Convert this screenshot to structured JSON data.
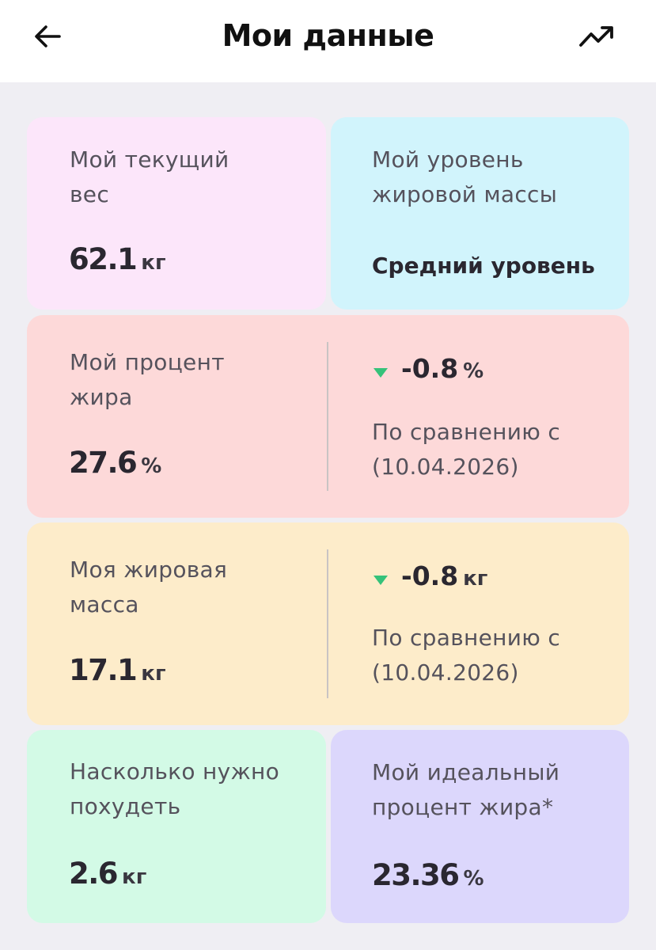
{
  "header": {
    "title": "Мои данные",
    "back_icon": "arrow-left-icon",
    "trend_icon": "trend-up-icon"
  },
  "cards": {
    "weight": {
      "label": "Мой текущий\nвес",
      "value": "62.1",
      "unit": "кг",
      "color": "#fce6fa"
    },
    "fat_level": {
      "label": "Мой уровень\nжировой массы",
      "value": "Средний уровень",
      "color": "#d1f4fc"
    },
    "fat_percent": {
      "label": "Мой процент\nжира",
      "value": "27.6",
      "unit": "%",
      "delta": "-0.8",
      "delta_unit": "%",
      "compare_text": "По сравнению с\n(10.04.2026)",
      "color": "#fdd9d9"
    },
    "fat_mass": {
      "label": "Моя жировая\nмасса",
      "value": "17.1",
      "unit": "кг",
      "delta": "-0.8",
      "delta_unit": "кг",
      "compare_text": "По сравнению с\n(10.04.2026)",
      "color": "#fdecca"
    },
    "lose": {
      "label": "Насколько нужно\nпохудеть",
      "value": "2.6",
      "unit": "кг",
      "color": "#d3fae6"
    },
    "ideal": {
      "label": "Мой идеальный\nпроцент жира*",
      "value": "23.36",
      "unit": "%",
      "color": "#dcd7fc"
    }
  },
  "delta_color": "#35c27a"
}
